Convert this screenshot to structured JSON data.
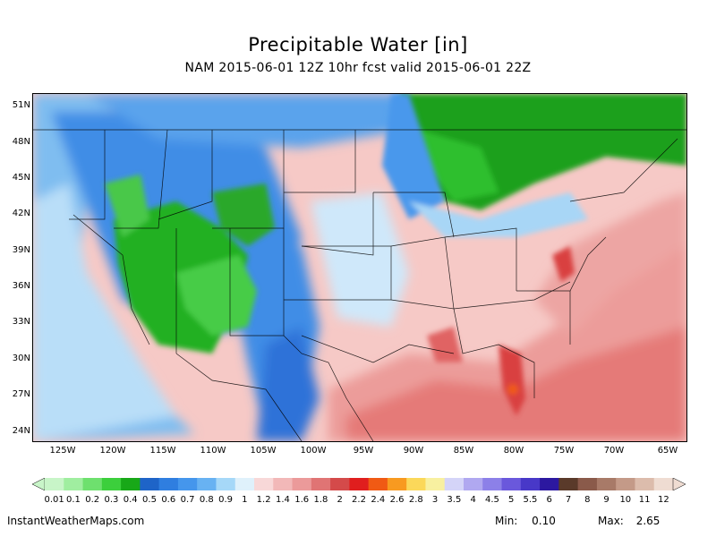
{
  "title": "Precipitable Water [in]",
  "subtitle": "NAM 2015-06-01 12Z 10hr fcst valid 2015-06-01 22Z",
  "latitudes": [
    "51N",
    "48N",
    "45N",
    "42N",
    "39N",
    "36N",
    "33N",
    "30N",
    "27N",
    "24N"
  ],
  "longitudes": [
    "125W",
    "120W",
    "115W",
    "110W",
    "105W",
    "100W",
    "95W",
    "90W",
    "85W",
    "80W",
    "75W",
    "70W",
    "65W"
  ],
  "colorbar": {
    "labels": [
      "0.01",
      "0.1",
      "0.2",
      "0.3",
      "0.4",
      "0.5",
      "0.6",
      "0.7",
      "0.8",
      "0.9",
      "1",
      "1.2",
      "1.4",
      "1.6",
      "1.8",
      "2",
      "2.2",
      "2.4",
      "2.6",
      "2.8",
      "3",
      "3.5",
      "4",
      "4.5",
      "5",
      "5.5",
      "6",
      "7",
      "8",
      "9",
      "10",
      "11",
      "12"
    ],
    "colors": [
      "#c8f5c8",
      "#a0eea0",
      "#6ee06e",
      "#3ccf3c",
      "#18a818",
      "#1e64c8",
      "#2f7ee0",
      "#4596ec",
      "#68b2f2",
      "#a6d8f8",
      "#dff1fb",
      "#f8d8d8",
      "#f2b8b8",
      "#eb9a9a",
      "#e07474",
      "#d44a4a",
      "#e01e1e",
      "#f05a14",
      "#f89a20",
      "#fbd85a",
      "#f8f0a0",
      "#d4d4f8",
      "#b0a8f0",
      "#8c80e8",
      "#6a58dc",
      "#4838c8",
      "#2c18a0",
      "#5a3a2a",
      "#8a5a4a",
      "#a87a68",
      "#c49a88",
      "#dcbcac",
      "#efdcd2"
    ]
  },
  "footer": {
    "site": "InstantWeatherMaps.com",
    "min_label": "Min:",
    "min_value": "0.10",
    "max_label": "Max:",
    "max_value": "2.65"
  }
}
